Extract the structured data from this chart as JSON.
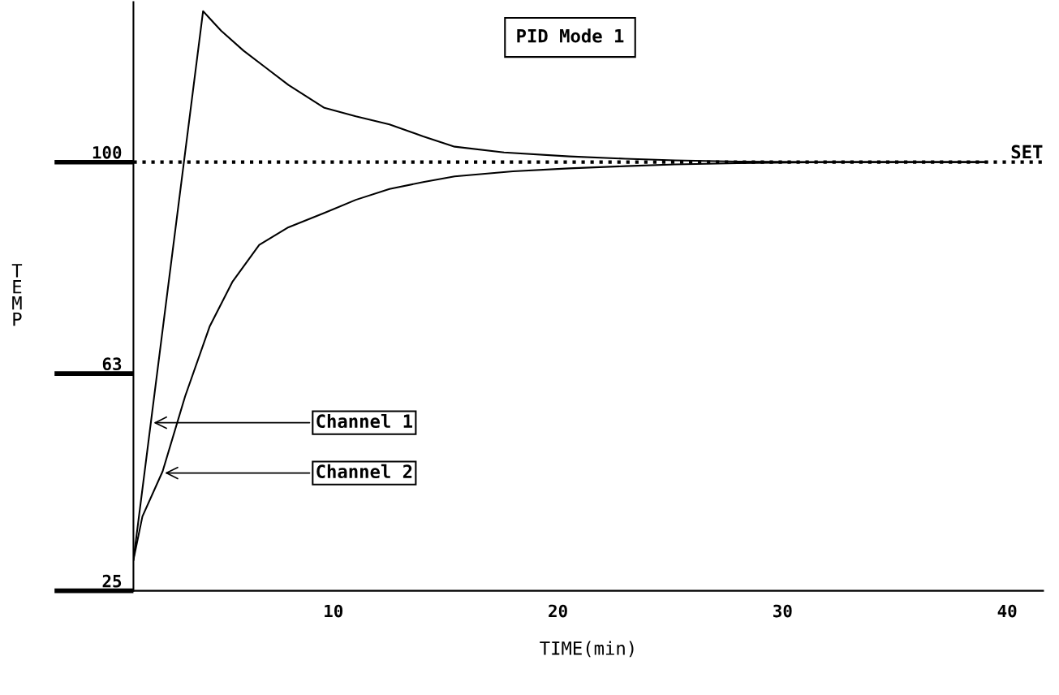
{
  "chart_data": {
    "type": "line",
    "title": "PID Mode 1",
    "xlabel": "TIME(min)",
    "ylabel": "TEMP",
    "xlim": [
      1.1,
      41.6
    ],
    "xticks": [
      10,
      20,
      30,
      40
    ],
    "ylim": [
      25,
      128
    ],
    "yticks": [
      25,
      63,
      100
    ],
    "grid": false,
    "marker": "none",
    "line_style": "solid",
    "series": [
      {
        "color": "#000000",
        "x": [
          1.1,
          4.2,
          5,
          6,
          7,
          8,
          9.6,
          11,
          12.5,
          14,
          15.4,
          17.6,
          20.5,
          23,
          25.2,
          28,
          32,
          36,
          39.1
        ],
        "values": [
          30.4,
          126.4,
          123,
          119.5,
          116.5,
          113.5,
          109.5,
          108,
          106.6,
          104.5,
          102.7,
          101.7,
          101,
          100.6,
          100.3,
          100.1,
          100,
          100,
          100
        ]
      },
      {
        "color": "#000000",
        "x": [
          1.1,
          1.5,
          2.4,
          3.4,
          4.5,
          5.5,
          6.7,
          8,
          9.6,
          11,
          12.5,
          14,
          15.4,
          18,
          20.5,
          23,
          25.2,
          28,
          32,
          36,
          39.1
        ],
        "values": [
          30.4,
          38,
          45.9,
          59,
          71.3,
          79,
          85.5,
          88.6,
          91.1,
          93.4,
          95.3,
          96.5,
          97.5,
          98.4,
          98.9,
          99.3,
          99.6,
          99.8,
          100,
          100,
          100
        ]
      }
    ],
    "ref_lines": [
      {
        "axis": "y",
        "value": 100,
        "label": "SET",
        "color": "#000000",
        "line_style": "dotted"
      }
    ],
    "annotations": [
      {
        "text": "Channel 1",
        "x": 1.9,
        "y": 54.4
      },
      {
        "text": "Channel 2",
        "x": 2.4,
        "y": 45.6
      }
    ]
  }
}
